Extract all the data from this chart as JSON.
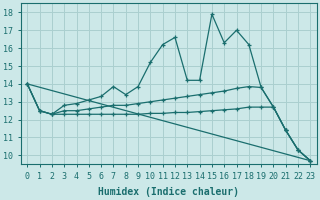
{
  "xlabel": "Humidex (Indice chaleur)",
  "bg_color": "#cce8e8",
  "grid_color": "#aacfcf",
  "line_color": "#1a6e6e",
  "xlim": [
    -0.5,
    23.5
  ],
  "ylim": [
    9.5,
    18.5
  ],
  "xticks": [
    0,
    1,
    2,
    3,
    4,
    5,
    6,
    7,
    8,
    9,
    10,
    11,
    12,
    13,
    14,
    15,
    16,
    17,
    18,
    19,
    20,
    21,
    22,
    23
  ],
  "yticks": [
    10,
    11,
    12,
    13,
    14,
    15,
    16,
    17,
    18
  ],
  "lines": [
    {
      "x": [
        0,
        1,
        2,
        3,
        4,
        5,
        6,
        7,
        8,
        9,
        10,
        11,
        12,
        13,
        14,
        15,
        16,
        17,
        18,
        19,
        20,
        21,
        22,
        23
      ],
      "y": [
        14.0,
        12.5,
        12.3,
        12.8,
        12.9,
        13.1,
        13.3,
        13.85,
        13.4,
        13.85,
        15.2,
        16.2,
        16.6,
        14.2,
        14.2,
        17.9,
        16.3,
        17.0,
        16.2,
        13.8,
        12.7,
        11.4,
        10.3,
        9.7
      ]
    },
    {
      "x": [
        0,
        1,
        2,
        3,
        4,
        5,
        6,
        7,
        8,
        9,
        10,
        11,
        12,
        13,
        14,
        15,
        16,
        17,
        18,
        19,
        20,
        21,
        22,
        23
      ],
      "y": [
        14.0,
        12.5,
        12.3,
        12.5,
        12.5,
        12.6,
        12.7,
        12.8,
        12.8,
        12.9,
        13.0,
        13.1,
        13.2,
        13.3,
        13.4,
        13.5,
        13.6,
        13.75,
        13.85,
        13.8,
        12.7,
        11.4,
        10.3,
        9.7
      ]
    },
    {
      "x": [
        0,
        1,
        2,
        3,
        4,
        5,
        6,
        7,
        8,
        9,
        10,
        11,
        12,
        13,
        14,
        15,
        16,
        17,
        18,
        19,
        20,
        21,
        22,
        23
      ],
      "y": [
        14.0,
        12.5,
        12.3,
        12.3,
        12.3,
        12.3,
        12.3,
        12.3,
        12.3,
        12.3,
        12.35,
        12.35,
        12.4,
        12.4,
        12.45,
        12.5,
        12.55,
        12.6,
        12.7,
        12.7,
        12.7,
        11.4,
        10.3,
        9.7
      ]
    },
    {
      "x": [
        0,
        23
      ],
      "y": [
        14.0,
        9.7
      ]
    }
  ],
  "font_family": "monospace",
  "tick_fontsize": 6.0,
  "xlabel_fontsize": 7.0
}
